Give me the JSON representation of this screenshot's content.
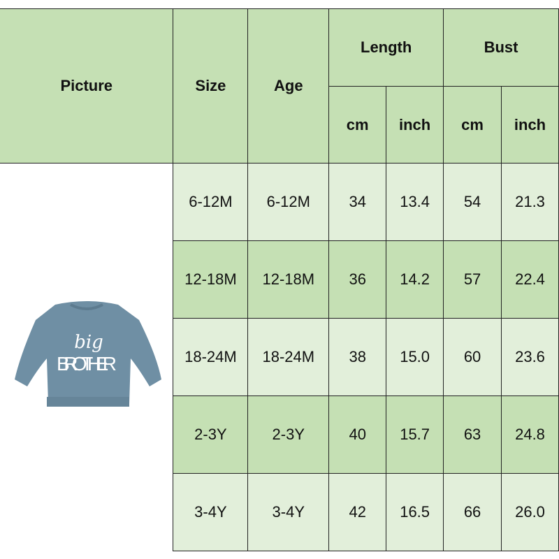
{
  "header": {
    "picture": "Picture",
    "size": "Size",
    "age": "Age",
    "length": "Length",
    "bust": "Bust",
    "cm": "cm",
    "inch": "inch"
  },
  "product": {
    "text_line1": "big",
    "text_line2": "BROTHER",
    "color": "#6f8fa4"
  },
  "colors": {
    "header": "#c5e0b4",
    "row_light": "#e2efda",
    "row_green": "#c5e0b4"
  },
  "rows": [
    {
      "size": "6-12M",
      "age": "6-12M",
      "length_cm": "34",
      "length_inch": "13.4",
      "bust_cm": "54",
      "bust_inch": "21.3"
    },
    {
      "size": "12-18M",
      "age": "12-18M",
      "length_cm": "36",
      "length_inch": "14.2",
      "bust_cm": "57",
      "bust_inch": "22.4"
    },
    {
      "size": "18-24M",
      "age": "18-24M",
      "length_cm": "38",
      "length_inch": "15.0",
      "bust_cm": "60",
      "bust_inch": "23.6"
    },
    {
      "size": "2-3Y",
      "age": "2-3Y",
      "length_cm": "40",
      "length_inch": "15.7",
      "bust_cm": "63",
      "bust_inch": "24.8"
    },
    {
      "size": "3-4Y",
      "age": "3-4Y",
      "length_cm": "42",
      "length_inch": "16.5",
      "bust_cm": "66",
      "bust_inch": "26.0"
    }
  ]
}
